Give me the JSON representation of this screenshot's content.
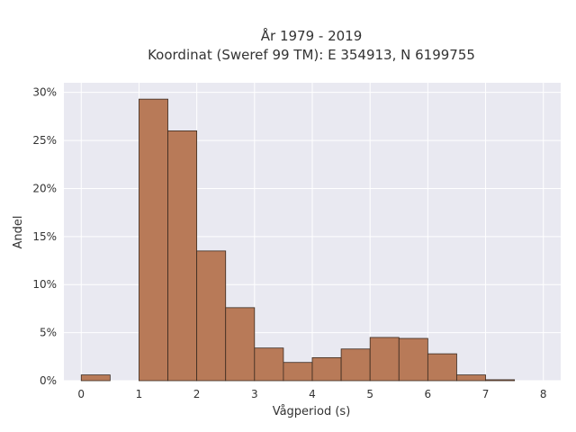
{
  "chart_data": {
    "type": "bar",
    "title": "År 1979 - 2019",
    "subtitle": "Koordinat (Sweref 99 TM): E 354913, N 6199755",
    "xlabel": "Vågperiod (s)",
    "ylabel": "Andel",
    "xlim": [
      -0.3,
      8.3
    ],
    "ylim": [
      0,
      31
    ],
    "x_ticks": [
      0,
      1,
      2,
      3,
      4,
      5,
      6,
      7,
      8
    ],
    "y_ticks": [
      0,
      5,
      10,
      15,
      20,
      25,
      30
    ],
    "y_tick_labels": [
      "0%",
      "5%",
      "10%",
      "15%",
      "20%",
      "25%",
      "30%"
    ],
    "bin_width": 0.5,
    "bins": [
      {
        "start": 0.0,
        "value": 0.6
      },
      {
        "start": 0.5,
        "value": 0.0
      },
      {
        "start": 1.0,
        "value": 29.3
      },
      {
        "start": 1.5,
        "value": 26.0
      },
      {
        "start": 2.0,
        "value": 13.5
      },
      {
        "start": 2.5,
        "value": 7.6
      },
      {
        "start": 3.0,
        "value": 3.4
      },
      {
        "start": 3.5,
        "value": 1.9
      },
      {
        "start": 4.0,
        "value": 2.4
      },
      {
        "start": 4.5,
        "value": 3.3
      },
      {
        "start": 5.0,
        "value": 4.5
      },
      {
        "start": 5.5,
        "value": 4.4
      },
      {
        "start": 6.0,
        "value": 2.8
      },
      {
        "start": 6.5,
        "value": 0.6
      },
      {
        "start": 7.0,
        "value": 0.1
      },
      {
        "start": 7.5,
        "value": 0.0
      }
    ],
    "bar_color": "#b87a58",
    "bar_edge_color": "#3a2a20",
    "plot_background": "#e9e9f1",
    "grid_color": "#ffffff",
    "grid": true
  }
}
